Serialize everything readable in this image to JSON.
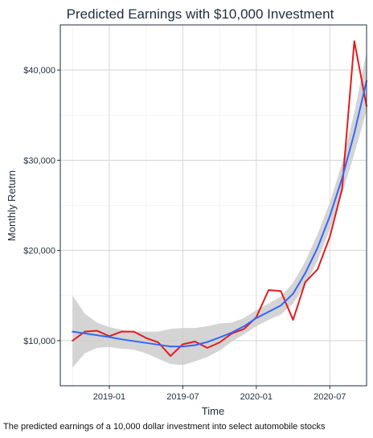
{
  "chart_data": {
    "type": "line",
    "title": "Predicted Earnings with $10,000 Investment",
    "xlabel": "Time",
    "ylabel": "Monthly Return",
    "caption": "The predicted earnings of a 10,000 dollar investment into select automobile stocks",
    "x_ticks": [
      "2019-01",
      "2019-07",
      "2020-01",
      "2020-07"
    ],
    "y_ticks": [
      "$10,000",
      "$20,000",
      "$30,000",
      "$40,000"
    ],
    "y_tick_values": [
      10000,
      20000,
      30000,
      40000
    ],
    "ylim": [
      5000,
      45000
    ],
    "xlim": [
      "2018-09",
      "2020-10"
    ],
    "grid": true,
    "x": [
      "2018-10",
      "2018-11",
      "2018-12",
      "2019-01",
      "2019-02",
      "2019-03",
      "2019-04",
      "2019-05",
      "2019-06",
      "2019-07",
      "2019-08",
      "2019-09",
      "2019-10",
      "2019-11",
      "2019-12",
      "2020-01",
      "2020-02",
      "2020-03",
      "2020-04",
      "2020-05",
      "2020-06",
      "2020-07",
      "2020-08",
      "2020-09",
      "2020-10"
    ],
    "series": [
      {
        "kind": "actual",
        "color": "#e41a1c",
        "values": [
          10000,
          11000,
          11100,
          10500,
          11000,
          11000,
          10300,
          9800,
          8300,
          9600,
          9900,
          9200,
          9800,
          10800,
          11300,
          12600,
          15600,
          15500,
          12300,
          16500,
          17900,
          21500,
          26800,
          43200,
          36000
        ]
      },
      {
        "kind": "smoothed",
        "color": "#3366ff",
        "values": [
          11000,
          10800,
          10600,
          10400,
          10150,
          9950,
          9750,
          9550,
          9350,
          9350,
          9500,
          9850,
          10350,
          10900,
          11600,
          12500,
          13200,
          13900,
          15200,
          17500,
          20300,
          23800,
          28000,
          33000,
          38800
        ]
      }
    ],
    "band": {
      "color": "#cccccc",
      "lower": [
        7000,
        8600,
        9200,
        9300,
        9100,
        9000,
        8600,
        8000,
        7400,
        7300,
        7700,
        8200,
        8900,
        9900,
        10700,
        11600,
        12300,
        12900,
        14100,
        16200,
        18900,
        22300,
        26300,
        30700,
        35500
      ],
      "upper": [
        15000,
        13000,
        12000,
        11500,
        11200,
        11000,
        11000,
        11000,
        11300,
        11400,
        11400,
        11600,
        11900,
        12000,
        12500,
        13400,
        14100,
        14900,
        16400,
        18800,
        21800,
        25300,
        29700,
        35300,
        42000
      ]
    }
  }
}
